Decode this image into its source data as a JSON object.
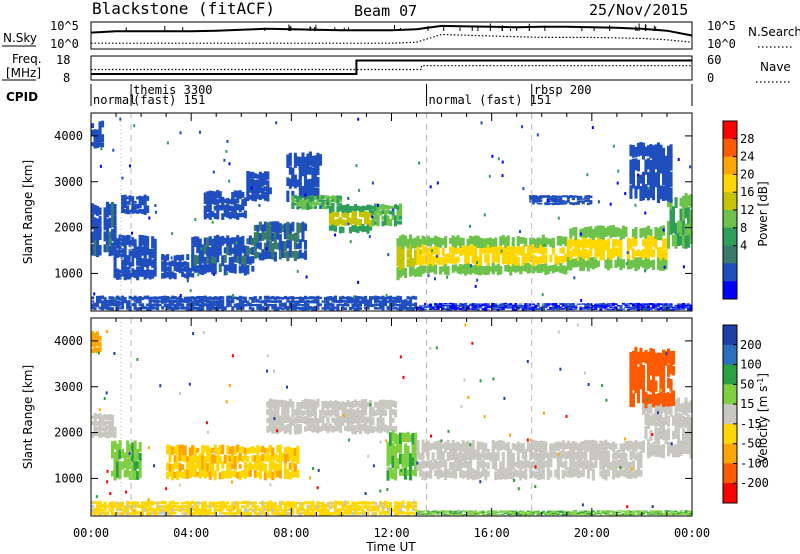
{
  "header": {
    "station": "Blackstone (fitACF)",
    "beam": "Beam 07",
    "date": "25/Nov/2015"
  },
  "chart_data": [
    {
      "type": "line",
      "panel": "noise",
      "left_label": "N.Sky",
      "right_label": "N.Search",
      "left_ticks": [
        "10^5",
        "10^0"
      ],
      "right_ticks": [
        "10^5",
        "10^0"
      ],
      "series": [
        {
          "name": "N.Sky",
          "style": "solid",
          "x": [
            0,
            1,
            2,
            3,
            4,
            5,
            6,
            7,
            8,
            9,
            10,
            11,
            12,
            13,
            14,
            15,
            16,
            17,
            18,
            19,
            20,
            21,
            22,
            23,
            24
          ],
          "y": [
            3.0,
            3.3,
            3.3,
            3.3,
            3.3,
            3.4,
            3.6,
            3.8,
            3.7,
            3.6,
            3.5,
            3.5,
            3.5,
            3.7,
            4.4,
            4.3,
            4.2,
            4.1,
            4.2,
            4.2,
            4.1,
            4.0,
            3.8,
            3.4,
            2.4
          ]
        },
        {
          "name": "N.Search",
          "style": "dotted",
          "x": [
            0,
            2,
            4,
            6,
            8,
            10,
            12,
            13,
            14,
            16,
            18,
            20,
            22,
            23,
            24
          ],
          "y": [
            0.8,
            0.8,
            0.8,
            0.8,
            0.8,
            0.8,
            0.8,
            1.0,
            2.6,
            2.3,
            2.0,
            2.0,
            1.8,
            1.5,
            1.0
          ]
        }
      ]
    },
    {
      "type": "line",
      "panel": "frequency",
      "left_label": "Freq.",
      "left_unit": "[MHz]",
      "right_label": "Nave",
      "left_ticks": [
        "18",
        "8"
      ],
      "right_ticks": [
        "60",
        "0"
      ],
      "series": [
        {
          "name": "Freq.",
          "style": "solid",
          "x": [
            0,
            10.6,
            10.6,
            24
          ],
          "y": [
            10.4,
            10.4,
            16.8,
            16.8
          ]
        },
        {
          "name": "Nave",
          "style": "dotted",
          "x": [
            0,
            13.2,
            13.2,
            24
          ],
          "y": [
            27,
            27,
            38,
            38
          ]
        }
      ]
    },
    {
      "type": "table",
      "panel": "cpid",
      "label": "CPID",
      "segments": [
        {
          "start": 0.0,
          "top": "",
          "bottom": "normal"
        },
        {
          "start": 1.6,
          "top": "themis 3300",
          "bottom": "(fast) 151"
        },
        {
          "start": 13.4,
          "top": "",
          "bottom": "normal (fast) 151"
        },
        {
          "start": 17.6,
          "top": "rbsp 200",
          "bottom": ""
        }
      ]
    },
    {
      "type": "heatmap",
      "panel": "power",
      "ylabel": "Slant Range [km]",
      "yticks": [
        1000,
        2000,
        3000,
        4000
      ],
      "ylim": [
        180,
        4500
      ],
      "colorbar": {
        "label": "Power [dB]",
        "ticks": [
          "28",
          "24",
          "20",
          "16",
          "12",
          "8",
          "4"
        ],
        "colors": [
          "#ff0000",
          "#ff5a00",
          "#ffa500",
          "#ffd700",
          "#c4c400",
          "#6cc24a",
          "#2e9e5a",
          "#3a7a6a",
          "#1f4fbf",
          "#0000ff"
        ]
      },
      "bands": [
        {
          "t0": 0.0,
          "t1": 0.5,
          "r0": 3750,
          "r1": 4300,
          "level": 5
        },
        {
          "t0": 0.0,
          "t1": 1.0,
          "r0": 1400,
          "r1": 2500,
          "level": 7
        },
        {
          "t0": 0.9,
          "t1": 2.6,
          "r0": 900,
          "r1": 1800,
          "level": 5
        },
        {
          "t0": 1.2,
          "t1": 2.3,
          "r0": 2300,
          "r1": 2700,
          "level": 5
        },
        {
          "t0": 2.8,
          "t1": 4.2,
          "r0": 900,
          "r1": 1400,
          "level": 5
        },
        {
          "t0": 4.0,
          "t1": 6.5,
          "r0": 1000,
          "r1": 1800,
          "level": 7
        },
        {
          "t0": 4.5,
          "t1": 6.2,
          "r0": 2200,
          "r1": 2800,
          "level": 5
        },
        {
          "t0": 6.5,
          "t1": 8.6,
          "r0": 1300,
          "r1": 2100,
          "level": 8
        },
        {
          "t0": 6.2,
          "t1": 7.2,
          "r0": 2600,
          "r1": 3200,
          "level": 5
        },
        {
          "t0": 7.8,
          "t1": 9.2,
          "r0": 2600,
          "r1": 3600,
          "level": 5
        },
        {
          "t0": 8.0,
          "t1": 10.0,
          "r0": 2400,
          "r1": 2700,
          "level": 12
        },
        {
          "t0": 9.5,
          "t1": 11.2,
          "r0": 1900,
          "r1": 2500,
          "level": 16
        },
        {
          "t0": 11.2,
          "t1": 12.4,
          "r0": 2050,
          "r1": 2500,
          "level": 13
        },
        {
          "t0": 12.2,
          "t1": 13.2,
          "r0": 900,
          "r1": 1800,
          "level": 18
        },
        {
          "t0": 13.0,
          "t1": 19.0,
          "r0": 1000,
          "r1": 1800,
          "level": 22
        },
        {
          "t0": 19.0,
          "t1": 23.0,
          "r0": 1100,
          "r1": 2000,
          "level": 22
        },
        {
          "t0": 23.0,
          "t1": 24.0,
          "r0": 1600,
          "r1": 2700,
          "level": 13
        },
        {
          "t0": 21.5,
          "t1": 23.2,
          "r0": 2600,
          "r1": 3800,
          "level": 6
        },
        {
          "t0": 17.5,
          "t1": 20.0,
          "r0": 2500,
          "r1": 2700,
          "level": 5
        },
        {
          "t0": 0.0,
          "t1": 13.0,
          "r0": 200,
          "r1": 500,
          "level": 6
        },
        {
          "t0": 13.0,
          "t1": 24.0,
          "r0": 200,
          "r1": 350,
          "level": 4
        }
      ]
    },
    {
      "type": "heatmap",
      "panel": "velocity",
      "ylabel": "Slant Range [km]",
      "xlabel": "Time UT",
      "xticks": [
        "00:00",
        "04:00",
        "08:00",
        "12:00",
        "16:00",
        "20:00",
        "00:00"
      ],
      "yticks": [
        1000,
        2000,
        3000,
        4000
      ],
      "ylim": [
        180,
        4500
      ],
      "colorbar": {
        "label": "Velocity",
        "unit_base": "[m s",
        "unit_exp": "-1",
        "unit_close": "]",
        "ticks": [
          "200",
          "100",
          "50",
          "15",
          "-15",
          "-50",
          "-100",
          "-200"
        ],
        "colors": [
          "#1f3fa8",
          "#2a6fbf",
          "#2aa040",
          "#7fd040",
          "#c8c8c0",
          "#ffd700",
          "#ffa500",
          "#ff5a00",
          "#ff0000"
        ]
      },
      "bands": [
        {
          "t0": 0.0,
          "t1": 0.4,
          "r0": 3750,
          "r1": 4200,
          "v": -80
        },
        {
          "t0": 0.0,
          "t1": 1.0,
          "r0": 1900,
          "r1": 2400,
          "v": 0
        },
        {
          "t0": 0.8,
          "t1": 2.0,
          "r0": 1000,
          "r1": 1800,
          "v": 40
        },
        {
          "t0": 3.0,
          "t1": 8.3,
          "r0": 1000,
          "r1": 1700,
          "v": -40
        },
        {
          "t0": 7.0,
          "t1": 12.2,
          "r0": 2000,
          "r1": 2700,
          "v": 0
        },
        {
          "t0": 11.8,
          "t1": 13.0,
          "r0": 1000,
          "r1": 2000,
          "v": 40
        },
        {
          "t0": 13.0,
          "t1": 22.0,
          "r0": 1000,
          "r1": 1800,
          "v": 0
        },
        {
          "t0": 22.0,
          "t1": 24.0,
          "r0": 1500,
          "r1": 2700,
          "v": 0
        },
        {
          "t0": 21.5,
          "t1": 23.3,
          "r0": 2600,
          "r1": 3800,
          "v": -120
        },
        {
          "t0": 0.0,
          "t1": 13.0,
          "r0": 200,
          "r1": 500,
          "v": -30
        },
        {
          "t0": 13.0,
          "t1": 24.0,
          "r0": 200,
          "r1": 300,
          "v": 40
        }
      ]
    }
  ]
}
